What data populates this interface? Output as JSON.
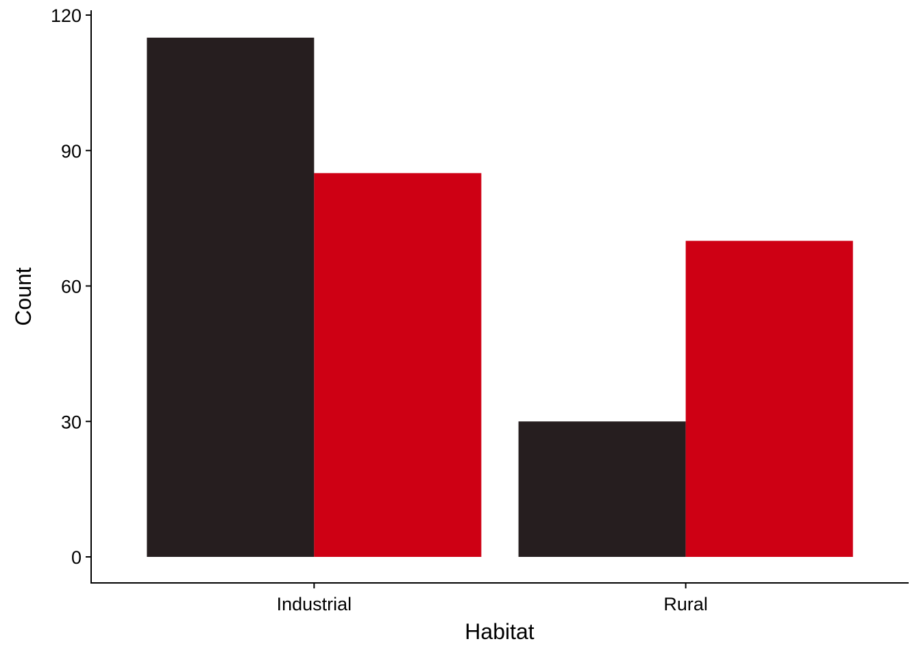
{
  "chart_data": {
    "type": "bar",
    "title": "",
    "xlabel": "Habitat",
    "ylabel": "Count",
    "categories": [
      "Industrial",
      "Rural"
    ],
    "series": [
      {
        "color": "#261e1f",
        "values": [
          115,
          30
        ]
      },
      {
        "color": "#ce0014",
        "values": [
          85,
          70
        ]
      }
    ],
    "ylim": [
      0,
      120
    ],
    "yticks": [
      0,
      30,
      60,
      90,
      120
    ],
    "grid": false,
    "legend": "none"
  }
}
